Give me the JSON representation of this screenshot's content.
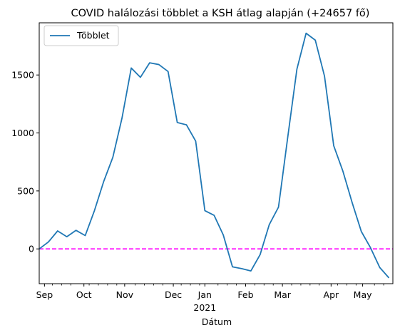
{
  "chart_data": {
    "type": "line",
    "title": "COVID halálozási többlet a KSH átlag alapján (+24657 fő)",
    "xlabel": "Dátum",
    "ylabel": "",
    "legend": {
      "placement": "top-left",
      "entries": [
        "Többlet"
      ]
    },
    "grid": false,
    "ylim": [
      -300,
      1950
    ],
    "xlim": [
      "2020-08-28",
      "2021-05-24"
    ],
    "y_ticks": [
      0,
      500,
      1000,
      1500
    ],
    "y_tick_labels": [
      "0",
      "500",
      "1000",
      "1500"
    ],
    "x_major_ticks": [
      {
        "date": "2020-09-01",
        "label": "Sep",
        "sublabel": ""
      },
      {
        "date": "2020-10-01",
        "label": "Oct",
        "sublabel": ""
      },
      {
        "date": "2020-11-01",
        "label": "Nov",
        "sublabel": ""
      },
      {
        "date": "2020-12-08",
        "label": "Dec",
        "sublabel": ""
      },
      {
        "date": "2021-01-01",
        "label": "Jan",
        "sublabel": "2021"
      },
      {
        "date": "2021-02-01",
        "label": "Feb",
        "sublabel": ""
      },
      {
        "date": "2021-03-01",
        "label": "Mar",
        "sublabel": ""
      },
      {
        "date": "2021-04-07",
        "label": "Apr",
        "sublabel": ""
      },
      {
        "date": "2021-05-01",
        "label": "May",
        "sublabel": ""
      }
    ],
    "x_minor_ticks": [
      "2020-09-07",
      "2020-09-14",
      "2020-09-21",
      "2020-10-05",
      "2020-10-12",
      "2020-10-19",
      "2020-10-26",
      "2020-11-09",
      "2020-11-16",
      "2020-11-23",
      "2020-11-30",
      "2020-12-14",
      "2020-12-21",
      "2020-12-28",
      "2021-01-11",
      "2021-01-18",
      "2021-01-25",
      "2021-02-08",
      "2021-02-15",
      "2021-02-22",
      "2021-03-08",
      "2021-03-15",
      "2021-03-22",
      "2021-03-29",
      "2021-04-12",
      "2021-04-19",
      "2021-04-26",
      "2021-05-10",
      "2021-05-17"
    ],
    "series": [
      {
        "name": "Többlet",
        "color": "#1f77b4",
        "x": [
          "2020-08-28",
          "2020-09-04",
          "2020-09-11",
          "2020-09-18",
          "2020-09-25",
          "2020-10-02",
          "2020-10-09",
          "2020-10-16",
          "2020-10-23",
          "2020-10-30",
          "2020-11-06",
          "2020-11-13",
          "2020-11-20",
          "2020-11-27",
          "2020-12-04",
          "2020-12-11",
          "2020-12-18",
          "2020-12-25",
          "2021-01-01",
          "2021-01-08",
          "2021-01-15",
          "2021-01-22",
          "2021-01-29",
          "2021-02-05",
          "2021-02-12",
          "2021-02-19",
          "2021-02-26",
          "2021-03-05",
          "2021-03-12",
          "2021-03-19",
          "2021-03-26",
          "2021-04-02",
          "2021-04-09",
          "2021-04-16",
          "2021-04-23",
          "2021-04-30",
          "2021-05-07",
          "2021-05-14",
          "2021-05-21"
        ],
        "y": [
          0,
          60,
          155,
          105,
          160,
          115,
          330,
          580,
          790,
          1130,
          1560,
          1480,
          1605,
          1590,
          1530,
          1090,
          1070,
          930,
          330,
          290,
          120,
          -155,
          -170,
          -190,
          -50,
          210,
          360,
          960,
          1550,
          1860,
          1800,
          1490,
          890,
          670,
          400,
          150,
          10,
          -160,
          -250
        ]
      }
    ],
    "reference_line": {
      "y": 0,
      "color": "#ff00ff",
      "style": "dashed"
    }
  }
}
